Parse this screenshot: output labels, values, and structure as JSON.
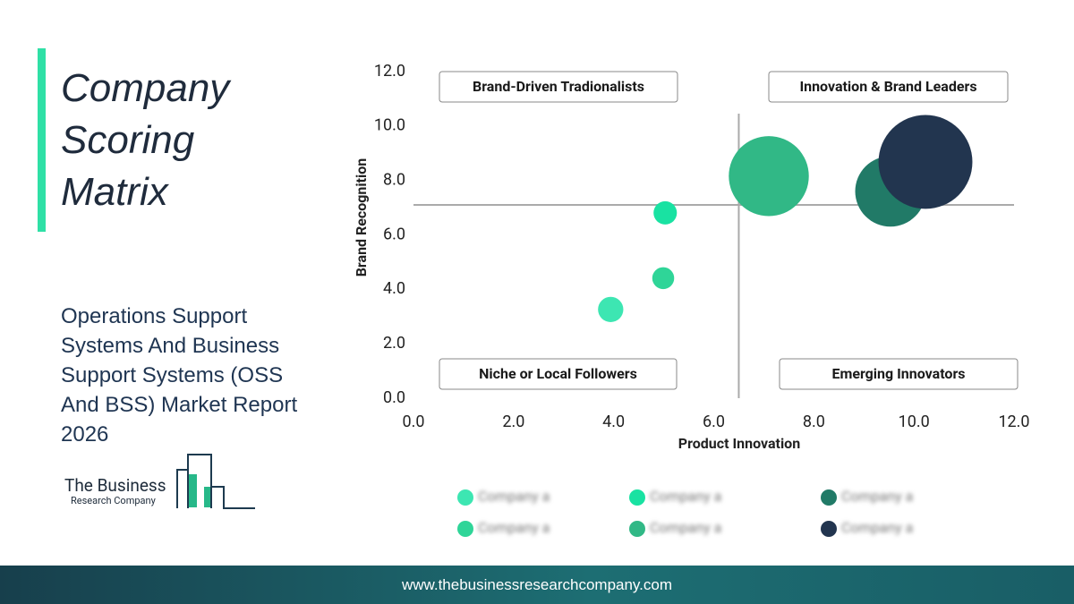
{
  "page": {
    "title": "Company Scoring Matrix",
    "subtitle": "Operations Support Systems And Business Support Systems (OSS And BSS) Market Report 2026",
    "logo_line1": "The Business",
    "logo_line2": "Research Company",
    "footer": "www.thebusinessresearchcompany.com"
  },
  "chart_data": {
    "type": "bubble",
    "x_label": "Product Innovation",
    "y_label": "Brand Recognition",
    "xlim": [
      0,
      12
    ],
    "ylim": [
      0,
      12
    ],
    "xticks": [
      {
        "value": 0,
        "label": "0.0"
      },
      {
        "value": 2,
        "label": "2.0"
      },
      {
        "value": 4,
        "label": "4.0"
      },
      {
        "value": 6,
        "label": "6.0"
      },
      {
        "value": 8,
        "label": "8.0"
      },
      {
        "value": 10,
        "label": "10.0"
      },
      {
        "value": 12,
        "label": "12.0"
      }
    ],
    "yticks": [
      {
        "value": 0,
        "label": "0.0"
      },
      {
        "value": 2,
        "label": "2.0"
      },
      {
        "value": 4,
        "label": "4.0"
      },
      {
        "value": 6,
        "label": "6.0"
      },
      {
        "value": 8,
        "label": "8.0"
      },
      {
        "value": 10,
        "label": "10.0"
      },
      {
        "value": 12,
        "label": "12.0"
      }
    ],
    "dividers": {
      "x": 6.5,
      "y": 7.1
    },
    "quadrants": [
      "Brand-Driven Tradionalists",
      "Innovation & Brand Leaders",
      "Niche or Local Followers",
      "Emerging Innovators"
    ],
    "series": [
      {
        "name": "Company a",
        "color": "#3de6b2",
        "x": [
          3.94
        ],
        "values": [
          3.26
        ],
        "sizes": [
          2
        ]
      },
      {
        "name": "Company a",
        "color": "#19e2a2",
        "x": [
          5.03
        ],
        "values": [
          6.81
        ],
        "sizes": [
          1.7
        ]
      },
      {
        "name": "Company a",
        "color": "#217a67",
        "x": [
          9.53
        ],
        "values": [
          7.6
        ],
        "sizes": [
          15.5
        ]
      },
      {
        "name": "Company a",
        "color": "#2fd598",
        "x": [
          4.99
        ],
        "values": [
          4.41
        ],
        "sizes": [
          1.5
        ]
      },
      {
        "name": "Company a",
        "color": "#31b886",
        "x": [
          7.1
        ],
        "values": [
          8.16
        ],
        "sizes": [
          20
        ]
      },
      {
        "name": "Company a",
        "color": "#22354f",
        "x": [
          10.23
        ],
        "values": [
          8.68
        ],
        "sizes": [
          27.5
        ]
      }
    ]
  }
}
